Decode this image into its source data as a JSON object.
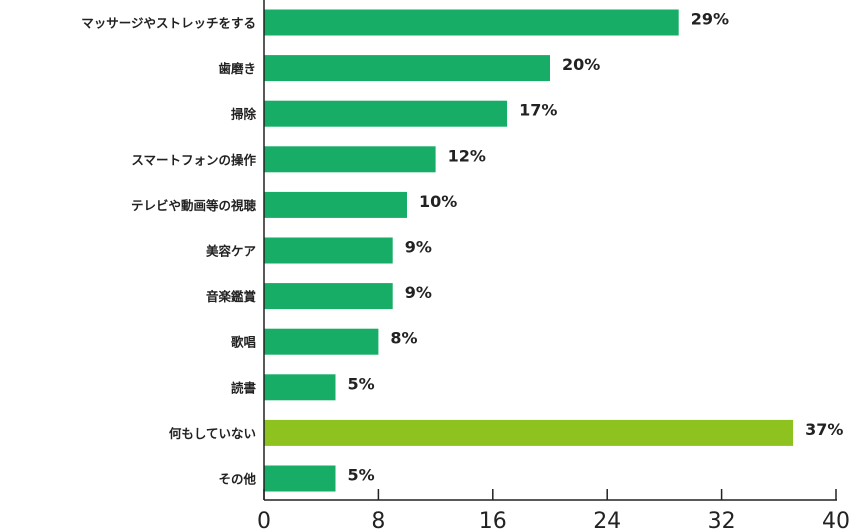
{
  "chart_data": {
    "type": "bar",
    "orientation": "horizontal",
    "categories": [
      "マッサージやストレッチをする",
      "歯磨き",
      "掃除",
      "スマートフォンの操作",
      "テレビや動画等の視聴",
      "美容ケア",
      "音楽鑑賞",
      "歌唱",
      "読書",
      "何もしていない",
      "その他"
    ],
    "values": [
      29,
      20,
      17,
      12,
      10,
      9,
      9,
      8,
      5,
      37,
      5
    ],
    "data_labels": [
      "29%",
      "20%",
      "17%",
      "12%",
      "10%",
      "9%",
      "9%",
      "8%",
      "5%",
      "37%",
      "5%"
    ],
    "highlight_index": 9,
    "xlim": [
      0,
      40
    ],
    "xticks": [
      0,
      8,
      16,
      24,
      32,
      40
    ],
    "title": "",
    "xlabel": "",
    "ylabel": "",
    "grid": false,
    "colors": {
      "bar": "#17ad66",
      "highlight": "#8dc21f",
      "axis": "#222222"
    }
  }
}
